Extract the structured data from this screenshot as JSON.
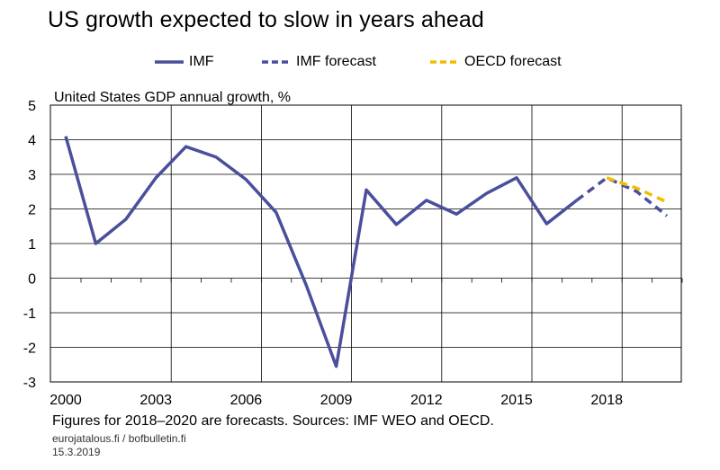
{
  "title": "US growth expected to slow in years ahead",
  "footer": {
    "note": "Figures for 2018–2020 are forecasts. Sources: IMF WEO and OECD.",
    "site": "eurojatalous.fi / bofbulletin.fi",
    "date": "15.3.2019"
  },
  "colors": {
    "imf": "#4a4f9c",
    "oecd": "#f2bd00",
    "grid": "#000000"
  },
  "chart_data": {
    "type": "line",
    "title": "US growth expected to slow in years ahead",
    "ylabel": "United States GDP annual growth, %",
    "xlabel": "",
    "xlim": [
      2000,
      2020
    ],
    "ylim": [
      -3,
      5
    ],
    "grid": true,
    "legend_position": "top",
    "x_tick_labels": [
      "2000",
      "2003",
      "2006",
      "2009",
      "2012",
      "2015",
      "2018"
    ],
    "y_tick_labels": [
      "5",
      "4",
      "3",
      "2",
      "1",
      "0",
      "-1",
      "-2",
      "-3"
    ],
    "series": [
      {
        "name": "IMF",
        "style": "solid",
        "x": [
          2000,
          2001,
          2002,
          2003,
          2004,
          2005,
          2006,
          2007,
          2008,
          2009,
          2010,
          2011,
          2012,
          2013,
          2014,
          2015,
          2016,
          2017
        ],
        "y": [
          4.1,
          1.0,
          1.7,
          2.9,
          3.8,
          3.5,
          2.85,
          1.9,
          -0.2,
          -2.55,
          2.55,
          1.55,
          2.25,
          1.85,
          2.45,
          2.9,
          1.57,
          2.25
        ]
      },
      {
        "name": "IMF forecast",
        "style": "dashed",
        "x": [
          2017,
          2018,
          2019,
          2020
        ],
        "y": [
          2.25,
          2.9,
          2.5,
          1.8
        ]
      },
      {
        "name": "OECD forecast",
        "style": "dashed",
        "x": [
          2018,
          2019,
          2020
        ],
        "y": [
          2.9,
          2.6,
          2.2
        ]
      }
    ]
  }
}
